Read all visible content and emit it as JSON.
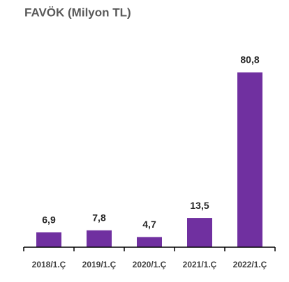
{
  "chart_data": {
    "type": "bar",
    "title": "FAVÖK (Milyon TL)",
    "categories": [
      "2018/1.Ç",
      "2019/1.Ç",
      "2020/1.Ç",
      "2021/1.Ç",
      "2022/1.Ç"
    ],
    "values": [
      6.9,
      7.8,
      4.7,
      13.5,
      80.8
    ],
    "value_labels": [
      "6,9",
      "7,8",
      "4,7",
      "13,5",
      "80,8"
    ],
    "color": "#7030a0",
    "ylim": [
      0,
      85
    ]
  }
}
